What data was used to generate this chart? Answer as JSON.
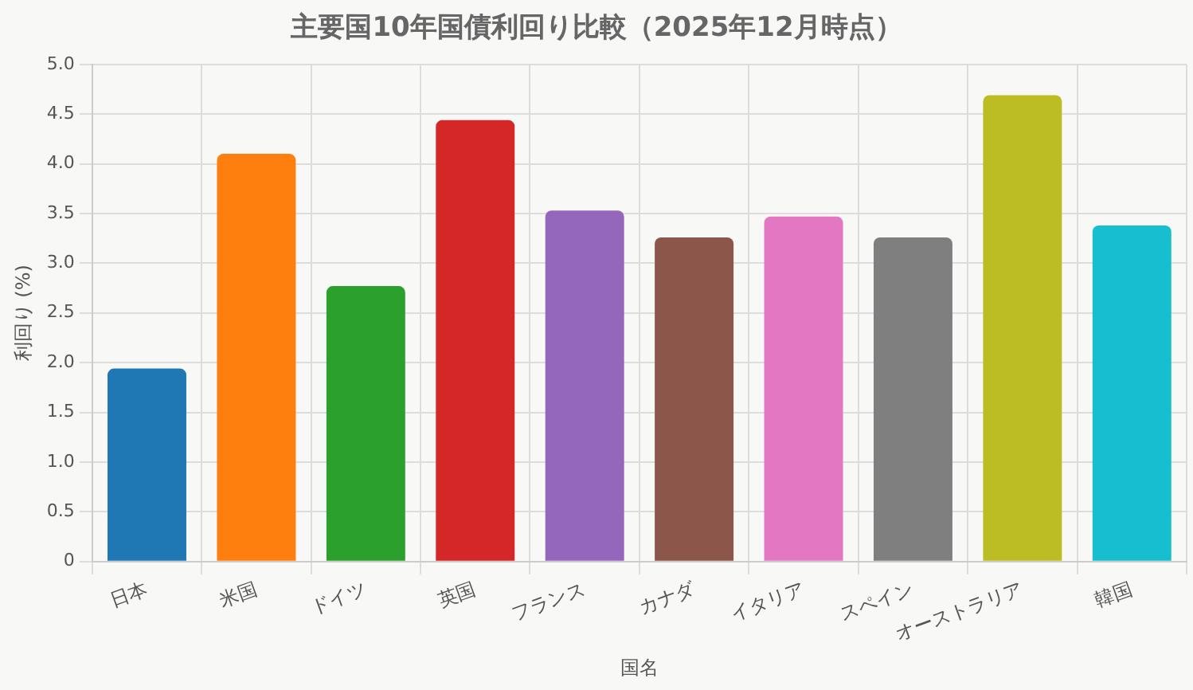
{
  "chart_data": {
    "type": "bar",
    "title": "主要国10年国債利回り比較（2025年12月時点）",
    "xlabel": "国名",
    "ylabel": "利回り (%)",
    "categories": [
      "日本",
      "米国",
      "ドイツ",
      "英国",
      "フランス",
      "カナダ",
      "イタリア",
      "スペイン",
      "オーストラリア",
      "韓国"
    ],
    "values": [
      1.94,
      4.1,
      2.77,
      4.44,
      3.53,
      3.26,
      3.47,
      3.26,
      4.69,
      3.38
    ],
    "colors": [
      "#1f77b4",
      "#ff7f0e",
      "#2ca02c",
      "#d62728",
      "#9467bd",
      "#8c564b",
      "#e377c2",
      "#7f7f7f",
      "#bcbd22",
      "#17becf"
    ],
    "ylim": [
      0,
      5
    ],
    "yticks": [
      0,
      0.5,
      {
        "value": 1,
        "label": "1.0"
      },
      1.5,
      {
        "value": 2,
        "label": "2.0"
      },
      2.5,
      {
        "value": 3,
        "label": "3.0"
      },
      3.5,
      {
        "value": 4,
        "label": "4.0"
      },
      4.5,
      {
        "value": 5,
        "label": "5.0"
      }
    ],
    "grid": true,
    "legend": false
  }
}
